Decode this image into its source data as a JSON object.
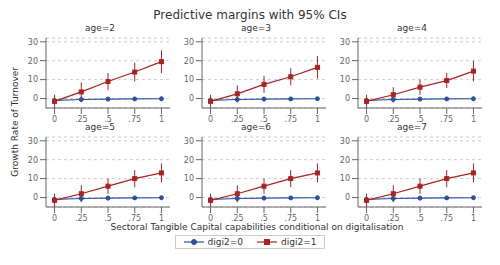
{
  "chart_data": {
    "type": "line",
    "title": "Predictive margins with 95% CIs",
    "xlabel": "Sectoral Tangible Capital capabilities conditional on digitalisation",
    "ylabel": "Growth Rate of Turnover",
    "legend": "bottom",
    "grid": true,
    "x": [
      0,
      0.25,
      0.5,
      0.75,
      1.0
    ],
    "xlim": [
      -0.08,
      1.08
    ],
    "xticks": [
      0,
      {
        "value": 0.25,
        "label": ".25"
      },
      {
        "value": 0.5,
        "label": ".5"
      },
      {
        "value": 0.75,
        "label": ".75"
      },
      1
    ],
    "ylim": [
      -5,
      32
    ],
    "yticks": [
      0,
      10,
      20,
      30
    ],
    "panels": [
      {
        "title": "age=2",
        "series": [
          {
            "name": "digi2=0",
            "color": "#2a52a0",
            "marker": "circle",
            "values": [
              -1.0,
              -0.5,
              -0.3,
              -0.2,
              -0.1
            ],
            "ci_low": [
              -3.0,
              -2.0,
              -1.5,
              -1.2,
              -1.0
            ],
            "ci_high": [
              1.0,
              1.0,
              0.9,
              0.8,
              0.8
            ]
          },
          {
            "name": "digi2=1",
            "color": "#aa2222",
            "marker": "square",
            "values": [
              -1.5,
              3.5,
              9.0,
              14.0,
              19.5
            ],
            "ci_low": [
              -5.0,
              -1.5,
              4.5,
              9.0,
              13.5
            ],
            "ci_high": [
              2.0,
              8.5,
              13.5,
              19.0,
              25.5
            ]
          }
        ]
      },
      {
        "title": "age=3",
        "series": [
          {
            "name": "digi2=0",
            "color": "#2a52a0",
            "marker": "circle",
            "values": [
              -1.0,
              -0.5,
              -0.3,
              -0.2,
              -0.1
            ],
            "ci_low": [
              -3.0,
              -2.0,
              -1.5,
              -1.2,
              -1.0
            ],
            "ci_high": [
              1.0,
              1.0,
              0.9,
              0.8,
              0.8
            ]
          },
          {
            "name": "digi2=1",
            "color": "#aa2222",
            "marker": "square",
            "values": [
              -1.5,
              2.5,
              7.5,
              11.5,
              16.5
            ],
            "ci_low": [
              -5.0,
              -2.0,
              3.0,
              7.0,
              10.5
            ],
            "ci_high": [
              2.0,
              7.0,
              12.0,
              16.0,
              22.5
            ]
          }
        ]
      },
      {
        "title": "age=4",
        "series": [
          {
            "name": "digi2=0",
            "color": "#2a52a0",
            "marker": "circle",
            "values": [
              -1.0,
              -0.5,
              -0.3,
              -0.2,
              -0.1
            ],
            "ci_low": [
              -3.0,
              -2.0,
              -1.5,
              -1.2,
              -1.0
            ],
            "ci_high": [
              1.0,
              1.0,
              0.9,
              0.8,
              0.8
            ]
          },
          {
            "name": "digi2=1",
            "color": "#aa2222",
            "marker": "square",
            "values": [
              -1.5,
              2.0,
              6.0,
              9.5,
              14.5
            ],
            "ci_low": [
              -5.0,
              -2.0,
              2.0,
              5.5,
              9.0
            ],
            "ci_high": [
              2.0,
              6.0,
              10.0,
              13.5,
              20.0
            ]
          }
        ]
      },
      {
        "title": "age=5",
        "series": [
          {
            "name": "digi2=0",
            "color": "#2a52a0",
            "marker": "circle",
            "values": [
              -1.0,
              -0.5,
              -0.3,
              -0.2,
              -0.1
            ],
            "ci_low": [
              -3.0,
              -2.0,
              -1.5,
              -1.2,
              -1.0
            ],
            "ci_high": [
              1.0,
              1.0,
              0.9,
              0.8,
              0.8
            ]
          },
          {
            "name": "digi2=1",
            "color": "#aa2222",
            "marker": "square",
            "values": [
              -1.5,
              2.0,
              6.0,
              10.0,
              13.0
            ],
            "ci_low": [
              -5.0,
              -2.5,
              2.0,
              5.5,
              8.0
            ],
            "ci_high": [
              2.0,
              6.5,
              10.0,
              14.5,
              18.0
            ]
          }
        ]
      },
      {
        "title": "age=6",
        "series": [
          {
            "name": "digi2=0",
            "color": "#2a52a0",
            "marker": "circle",
            "values": [
              -1.0,
              -0.5,
              -0.3,
              -0.2,
              -0.1
            ],
            "ci_low": [
              -3.0,
              -2.0,
              -1.5,
              -1.2,
              -1.0
            ],
            "ci_high": [
              1.0,
              1.0,
              0.9,
              0.8,
              0.8
            ]
          },
          {
            "name": "digi2=1",
            "color": "#aa2222",
            "marker": "square",
            "values": [
              -1.5,
              2.0,
              6.0,
              10.0,
              13.0
            ],
            "ci_low": [
              -5.0,
              -2.5,
              2.0,
              5.5,
              8.0
            ],
            "ci_high": [
              2.0,
              6.5,
              10.0,
              14.5,
              18.0
            ]
          }
        ]
      },
      {
        "title": "age=7",
        "series": [
          {
            "name": "digi2=0",
            "color": "#2a52a0",
            "marker": "circle",
            "values": [
              -1.0,
              -0.5,
              -0.3,
              -0.2,
              -0.1
            ],
            "ci_low": [
              -3.0,
              -2.0,
              -1.5,
              -1.2,
              -1.0
            ],
            "ci_high": [
              1.0,
              1.0,
              0.9,
              0.8,
              0.8
            ]
          },
          {
            "name": "digi2=1",
            "color": "#aa2222",
            "marker": "square",
            "values": [
              -1.5,
              2.0,
              6.0,
              10.0,
              13.0
            ],
            "ci_low": [
              -5.0,
              -2.5,
              2.0,
              5.5,
              8.0
            ],
            "ci_high": [
              2.0,
              6.5,
              10.0,
              14.5,
              18.0
            ]
          }
        ]
      }
    ]
  }
}
